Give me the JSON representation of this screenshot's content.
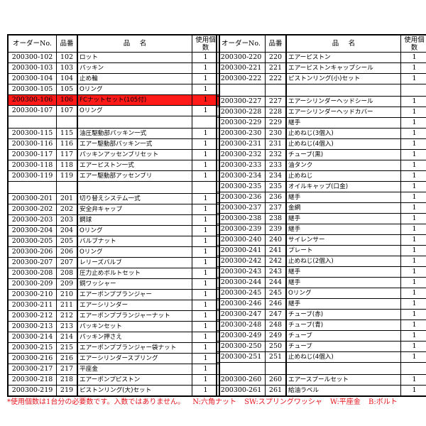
{
  "header": {
    "order_no": "オーダーNo.",
    "part_no": "品番",
    "name": "品　名",
    "qty": "使用個数"
  },
  "highlight_color": "#ff1a1a",
  "left": [
    {
      "order": "200300-102",
      "num": "102",
      "name": "ロット",
      "qty": "1"
    },
    {
      "order": "200300-103",
      "num": "103",
      "name": "パッキン",
      "qty": "1"
    },
    {
      "order": "200300-104",
      "num": "104",
      "name": "止め輪",
      "qty": "1"
    },
    {
      "order": "200300-105",
      "num": "105",
      "name": "Oリング",
      "qty": "1"
    },
    {
      "order": "200300-106",
      "num": "106",
      "name": "FCナットセット(105付)",
      "qty": "1",
      "highlight": true
    },
    {
      "order": "200300-107",
      "num": "107",
      "name": "Oリング",
      "qty": "1"
    },
    null,
    {
      "order": "200300-115",
      "num": "115",
      "name": "油圧駆動部パッキン一式",
      "qty": "1"
    },
    {
      "order": "200300-116",
      "num": "116",
      "name": "エアー駆動部パッキン一式",
      "qty": "1"
    },
    {
      "order": "200300-117",
      "num": "117",
      "name": "パッキンアッセンブリセット",
      "qty": "1"
    },
    {
      "order": "200300-118",
      "num": "118",
      "name": "エアーピストン一式",
      "qty": "1"
    },
    {
      "order": "200300-119",
      "num": "119",
      "name": "エアー駆動部アッセンブリ",
      "qty": "1"
    },
    null,
    {
      "order": "200300-201",
      "num": "201",
      "name": "切り替えシステム一式",
      "qty": "1"
    },
    {
      "order": "200300-202",
      "num": "202",
      "name": "安全弁キャップ",
      "qty": "1"
    },
    {
      "order": "200300-203",
      "num": "203",
      "name": "鋼球",
      "qty": "1"
    },
    {
      "order": "200300-204",
      "num": "204",
      "name": "Oリング",
      "qty": "1"
    },
    {
      "order": "200300-205",
      "num": "205",
      "name": "バルブナット",
      "qty": "1"
    },
    {
      "order": "200300-206",
      "num": "206",
      "name": "Oリング",
      "qty": "1"
    },
    {
      "order": "200300-207",
      "num": "207",
      "name": "レリーズバルブ",
      "qty": "1"
    },
    {
      "order": "200300-208",
      "num": "208",
      "name": "圧力止めボルトセット",
      "qty": "1"
    },
    {
      "order": "200300-209",
      "num": "209",
      "name": "銅ワッシャー",
      "qty": "1"
    },
    {
      "order": "200300-210",
      "num": "210",
      "name": "エアーポンププランジャー",
      "qty": "1"
    },
    {
      "order": "200300-211",
      "num": "211",
      "name": "エアーシリンダー",
      "qty": "1"
    },
    {
      "order": "200300-212",
      "num": "212",
      "name": "エアーポンププランジャーナット",
      "qty": "1"
    },
    {
      "order": "200300-213",
      "num": "213",
      "name": "パッキンセット",
      "qty": "1"
    },
    {
      "order": "200300-214",
      "num": "214",
      "name": "パッキン押さえ",
      "qty": "1"
    },
    {
      "order": "200300-215",
      "num": "215",
      "name": "エアーポンププランジャー袋ナット",
      "qty": "1"
    },
    {
      "order": "200300-216",
      "num": "216",
      "name": "エアーシリンダースプリング",
      "qty": "1"
    },
    {
      "order": "200300-217",
      "num": "217",
      "name": "平座金",
      "qty": "1"
    },
    {
      "order": "200300-218",
      "num": "218",
      "name": "エアーポンプピストン",
      "qty": "1"
    },
    {
      "order": "200300-219",
      "num": "219",
      "name": "ピストンリング(大)セット",
      "qty": "1"
    }
  ],
  "right": [
    {
      "order": "200300-220",
      "num": "220",
      "name": "エアーピストン",
      "qty": "1"
    },
    {
      "order": "200300-221",
      "num": "221",
      "name": "エアーピストンキャップシール",
      "qty": "1"
    },
    {
      "order": "200300-222",
      "num": "222",
      "name": "ピストンリング(小)セット",
      "qty": "1"
    },
    null,
    {
      "order": "200300-227",
      "num": "227",
      "name": "エアーシリンダーヘッドシール",
      "qty": "1"
    },
    {
      "order": "200300-228",
      "num": "228",
      "name": "エアーシリンダーヘッドカバー",
      "qty": "1"
    },
    {
      "order": "200300-229",
      "num": "229",
      "name": "継手",
      "qty": "1"
    },
    {
      "order": "200300-230",
      "num": "230",
      "name": "止めねじ(3個入)",
      "qty": "1"
    },
    {
      "order": "200300-231",
      "num": "231",
      "name": "止めねじ(4個入)",
      "qty": "1"
    },
    {
      "order": "200300-232",
      "num": "232",
      "name": "チューブ(黒)",
      "qty": "1"
    },
    {
      "order": "200300-233",
      "num": "233",
      "name": "油タンク",
      "qty": "1"
    },
    {
      "order": "200300-234",
      "num": "234",
      "name": "止めねじ",
      "qty": "1"
    },
    {
      "order": "200300-235",
      "num": "235",
      "name": "オイルキャップ(口金)",
      "qty": "1"
    },
    {
      "order": "200300-236",
      "num": "236",
      "name": "継手",
      "qty": "1"
    },
    {
      "order": "200300-237",
      "num": "237",
      "name": "金網",
      "qty": "1"
    },
    {
      "order": "200300-238",
      "num": "238",
      "name": "継手",
      "qty": "1"
    },
    {
      "order": "200300-239",
      "num": "239",
      "name": "継手",
      "qty": "1"
    },
    {
      "order": "200300-240",
      "num": "240",
      "name": "サイレンサー",
      "qty": "1"
    },
    {
      "order": "200300-241",
      "num": "241",
      "name": "プレート",
      "qty": "1"
    },
    {
      "order": "200300-242",
      "num": "242",
      "name": "止めねじ(2個入)",
      "qty": "1"
    },
    {
      "order": "200300-243",
      "num": "243",
      "name": "継手",
      "qty": "1"
    },
    {
      "order": "200300-244",
      "num": "244",
      "name": "継手",
      "qty": "1"
    },
    {
      "order": "200300-245",
      "num": "245",
      "name": "Oリング",
      "qty": "1"
    },
    {
      "order": "200300-246",
      "num": "246",
      "name": "継手",
      "qty": "1"
    },
    {
      "order": "200300-247",
      "num": "247",
      "name": "チューブ(赤)",
      "qty": "1"
    },
    {
      "order": "200300-248",
      "num": "248",
      "name": "チューブ(青)",
      "qty": "1"
    },
    {
      "order": "200300-249",
      "num": "249",
      "name": "チューブ",
      "qty": "1"
    },
    {
      "order": "200300-250",
      "num": "250",
      "name": "チューブ",
      "qty": "1"
    },
    {
      "order": "200300-251",
      "num": "251",
      "name": "止めねじ(4個入)",
      "qty": "1"
    },
    null,
    {
      "order": "200300-260",
      "num": "260",
      "name": "エアースプールセット",
      "qty": "1"
    },
    {
      "order": "200300-261",
      "num": "261",
      "name": "給油ラベル",
      "qty": "1"
    }
  ],
  "footnote": {
    "note": "*使用個数は1台分の必要数です。入数ではありません。",
    "legend": [
      "N:六角ナット",
      "SW:スプリングワッシャ",
      "W:平座金",
      "B:ボルト"
    ]
  }
}
